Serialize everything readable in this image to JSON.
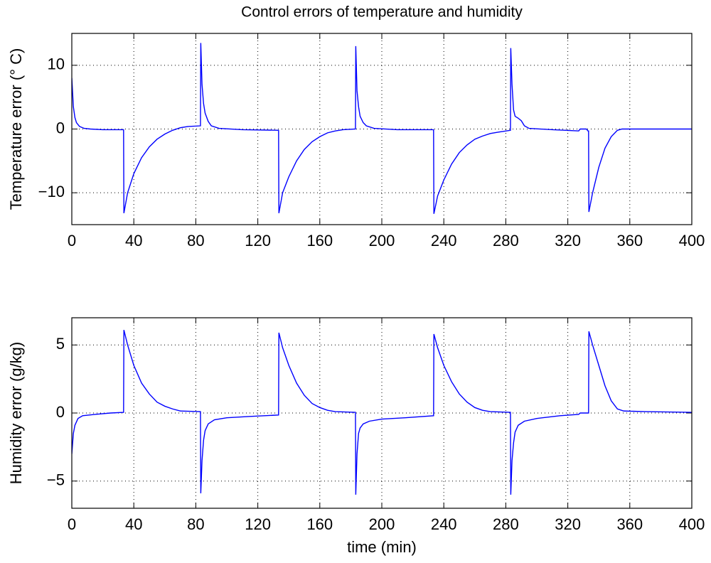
{
  "chart_data": [
    {
      "type": "line",
      "title": "Control errors of temperature and humidity",
      "ylabel": "Temperature error (° C)",
      "x": [
        0,
        1,
        2,
        3,
        5,
        8,
        12,
        20,
        33.4,
        33.6,
        36,
        40,
        45,
        50,
        55,
        60,
        65,
        70,
        75,
        83,
        83.2,
        84,
        85,
        86,
        88,
        90,
        95,
        110,
        133.4,
        133.6,
        136,
        140,
        145,
        150,
        155,
        160,
        165,
        170,
        175,
        183,
        183.2,
        184,
        185,
        186,
        188,
        190,
        195,
        210,
        233.4,
        233.6,
        236,
        240,
        245,
        250,
        255,
        260,
        265,
        270,
        275,
        283,
        283.2,
        284,
        285,
        286,
        288,
        290,
        292,
        295,
        310,
        327,
        328,
        332,
        333,
        333.4,
        333.6,
        336,
        340,
        344,
        348,
        352,
        355,
        400
      ],
      "values": [
        8,
        3.5,
        1.8,
        1,
        0.4,
        0.1,
        0,
        -0.1,
        -0.1,
        -13.2,
        -10,
        -7,
        -4.5,
        -2.8,
        -1.6,
        -0.8,
        -0.2,
        0.2,
        0.4,
        0.5,
        13.5,
        7,
        4,
        2.5,
        1.2,
        0.5,
        0.1,
        -0.1,
        -0.2,
        -13.2,
        -10,
        -7.5,
        -5,
        -3.2,
        -2,
        -1.2,
        -0.6,
        -0.3,
        -0.1,
        0,
        13,
        6,
        3.5,
        2,
        1,
        0.5,
        0.1,
        -0.1,
        -0.1,
        -13.3,
        -10.5,
        -8,
        -5.5,
        -3.7,
        -2.5,
        -1.6,
        -1.1,
        -0.7,
        -0.5,
        -0.2,
        12.7,
        7,
        3,
        2,
        1.7,
        1.3,
        0.5,
        0.1,
        -0.1,
        -0.3,
        0,
        0,
        -0.3,
        -0.3,
        -13,
        -10,
        -6,
        -3,
        -1.2,
        -0.2,
        0,
        0
      ],
      "color": "#0000ff",
      "xlim": [
        0,
        400
      ],
      "xticks": [
        0,
        40,
        80,
        120,
        160,
        200,
        240,
        280,
        320,
        360,
        400
      ],
      "ylim": [
        -15,
        15
      ],
      "yticks": [
        {
          "value": -10,
          "label": "−10"
        },
        0,
        10
      ],
      "grid": true
    },
    {
      "type": "line",
      "ylabel": "Humidity error (g/kg)",
      "xlabel": "time (min)",
      "x": [
        0,
        1,
        2,
        4,
        7,
        15,
        25,
        33.4,
        33.6,
        36,
        40,
        45,
        50,
        55,
        60,
        65,
        70,
        83,
        83.2,
        84,
        85,
        86,
        88,
        92,
        100,
        115,
        133.4,
        133.6,
        136,
        140,
        145,
        150,
        155,
        160,
        165,
        170,
        183,
        183.2,
        184,
        185,
        186,
        188,
        192,
        200,
        215,
        233.4,
        233.6,
        236,
        240,
        245,
        250,
        255,
        260,
        265,
        270,
        283,
        283.2,
        284,
        285,
        286,
        288,
        292,
        300,
        315,
        327,
        328,
        332,
        333.4,
        333.6,
        336,
        340,
        344,
        348,
        352,
        356,
        370,
        400
      ],
      "values": [
        -3,
        -1.5,
        -0.9,
        -0.4,
        -0.2,
        -0.1,
        0,
        0.05,
        6.1,
        5,
        3.5,
        2.2,
        1.4,
        0.8,
        0.5,
        0.3,
        0.15,
        0.1,
        -5.9,
        -3.5,
        -2,
        -1.3,
        -0.8,
        -0.5,
        -0.35,
        -0.25,
        -0.15,
        5.9,
        4.8,
        3.5,
        2.2,
        1.3,
        0.7,
        0.4,
        0.2,
        0.1,
        0.05,
        -6,
        -3,
        -1.5,
        -1.1,
        -0.8,
        -0.6,
        -0.45,
        -0.35,
        -0.2,
        5.8,
        4.8,
        3.5,
        2.3,
        1.4,
        0.8,
        0.4,
        0.2,
        0.1,
        0.05,
        -6,
        -3.5,
        -2.2,
        -1.4,
        -0.9,
        -0.6,
        -0.4,
        -0.2,
        -0.1,
        0,
        0,
        0,
        6,
        5,
        3.5,
        2,
        0.9,
        0.3,
        0.15,
        0.1,
        0.05
      ],
      "color": "#0000ff",
      "xlim": [
        0,
        400
      ],
      "xticks": [
        0,
        40,
        80,
        120,
        160,
        200,
        240,
        280,
        320,
        360,
        400
      ],
      "ylim": [
        -7,
        7
      ],
      "yticks": [
        {
          "value": -5,
          "label": "−5"
        },
        0,
        5
      ],
      "grid": true
    }
  ]
}
